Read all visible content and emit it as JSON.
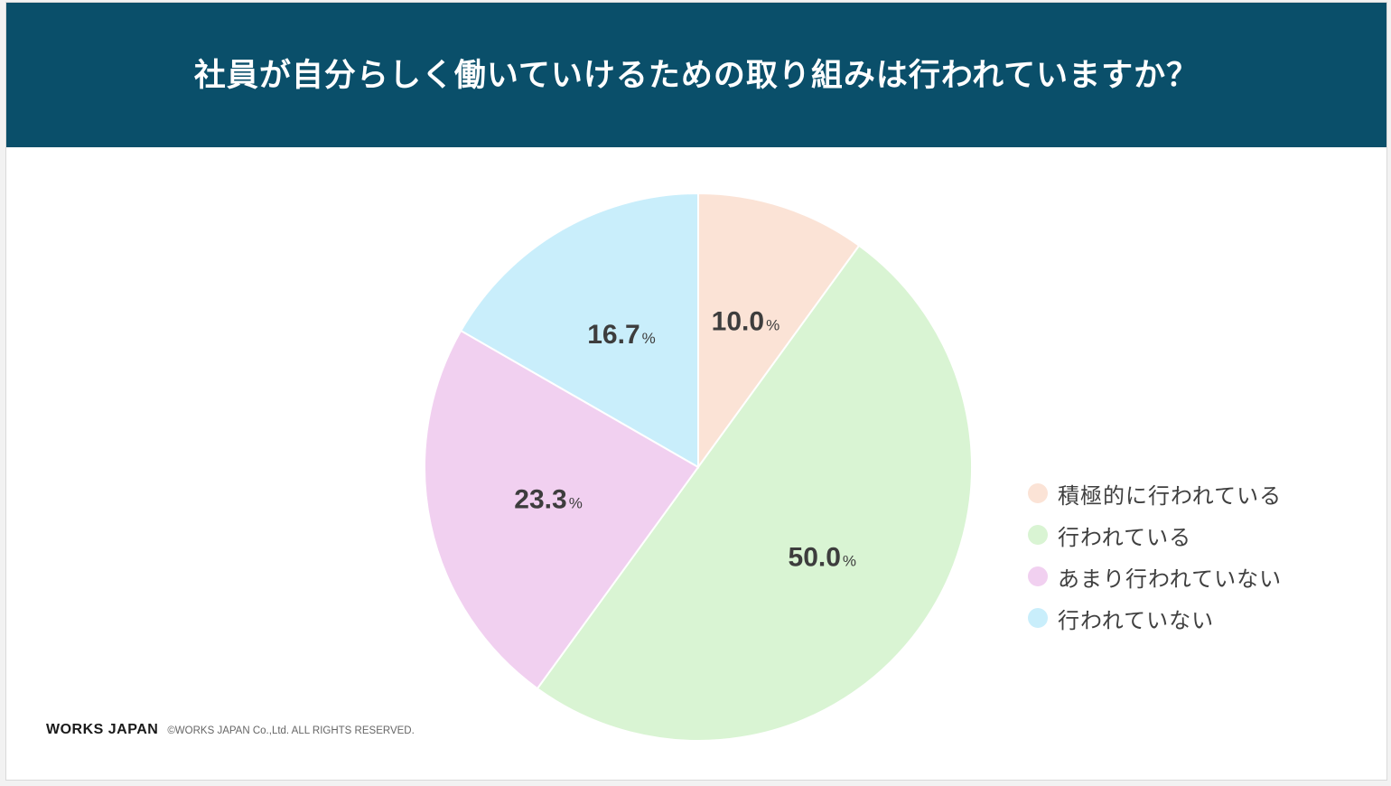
{
  "header": {
    "title": "社員が自分らしく働いていけるための取り組みは行われていますか？"
  },
  "chart_data": {
    "type": "pie",
    "title": "社員が自分らしく働いていけるための取り組みは行われていますか？",
    "unit": "%",
    "slices": [
      {
        "label": "積極的に行われている",
        "value": 10.0,
        "display": "10.0",
        "color": "#fbe3d6"
      },
      {
        "label": "行われている",
        "value": 50.0,
        "display": "50.0",
        "color": "#d9f4d3"
      },
      {
        "label": "あまり行われていない",
        "value": 23.3,
        "display": "23.3",
        "color": "#f1d0f0"
      },
      {
        "label": "行われていない",
        "value": 16.7,
        "display": "16.7",
        "color": "#c9eefb"
      }
    ],
    "start_angle": "12 o'clock",
    "direction": "clockwise",
    "legend_position": "right"
  },
  "footer": {
    "logo": "WORKS JAPAN",
    "copyright": "©WORKS JAPAN Co.,Ltd. ALL RIGHTS RESERVED."
  }
}
